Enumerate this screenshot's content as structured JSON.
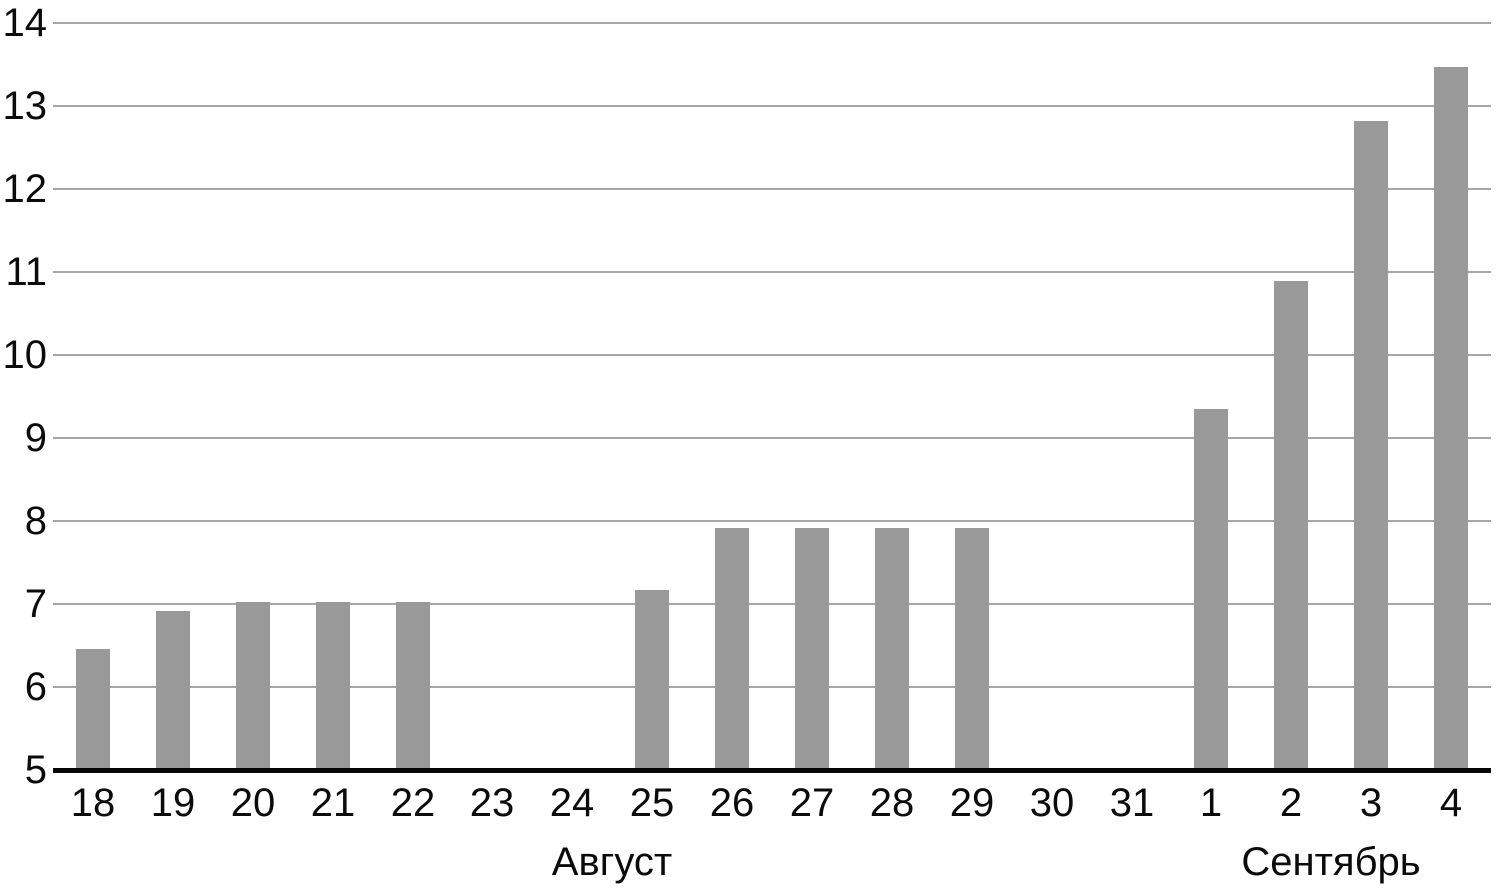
{
  "chart_data": {
    "type": "bar",
    "title": "",
    "xlabel": "",
    "ylabel": "",
    "categories": [
      "18",
      "19",
      "20",
      "21",
      "22",
      "23",
      "24",
      "25",
      "26",
      "27",
      "28",
      "29",
      "30",
      "31",
      "1",
      "2",
      "3",
      "4"
    ],
    "values": [
      6.43,
      6.89,
      7.0,
      7.0,
      7.0,
      null,
      null,
      7.14,
      7.89,
      7.89,
      7.89,
      7.89,
      null,
      null,
      9.32,
      10.87,
      12.8,
      13.45
    ],
    "month_groups": [
      {
        "label": "Август",
        "from": 0,
        "to": 13
      },
      {
        "label": "Сентябрь",
        "from": 14,
        "to": 17
      }
    ],
    "ylim": [
      5,
      14
    ],
    "yticks": [
      5,
      6,
      7,
      8,
      9,
      10,
      11,
      12,
      13,
      14
    ],
    "grid": true,
    "legend": false,
    "bar_color": "#999999",
    "grid_color": "#a6a6a6",
    "axis_color": "#060606",
    "text_color": "#0b0b0b"
  }
}
